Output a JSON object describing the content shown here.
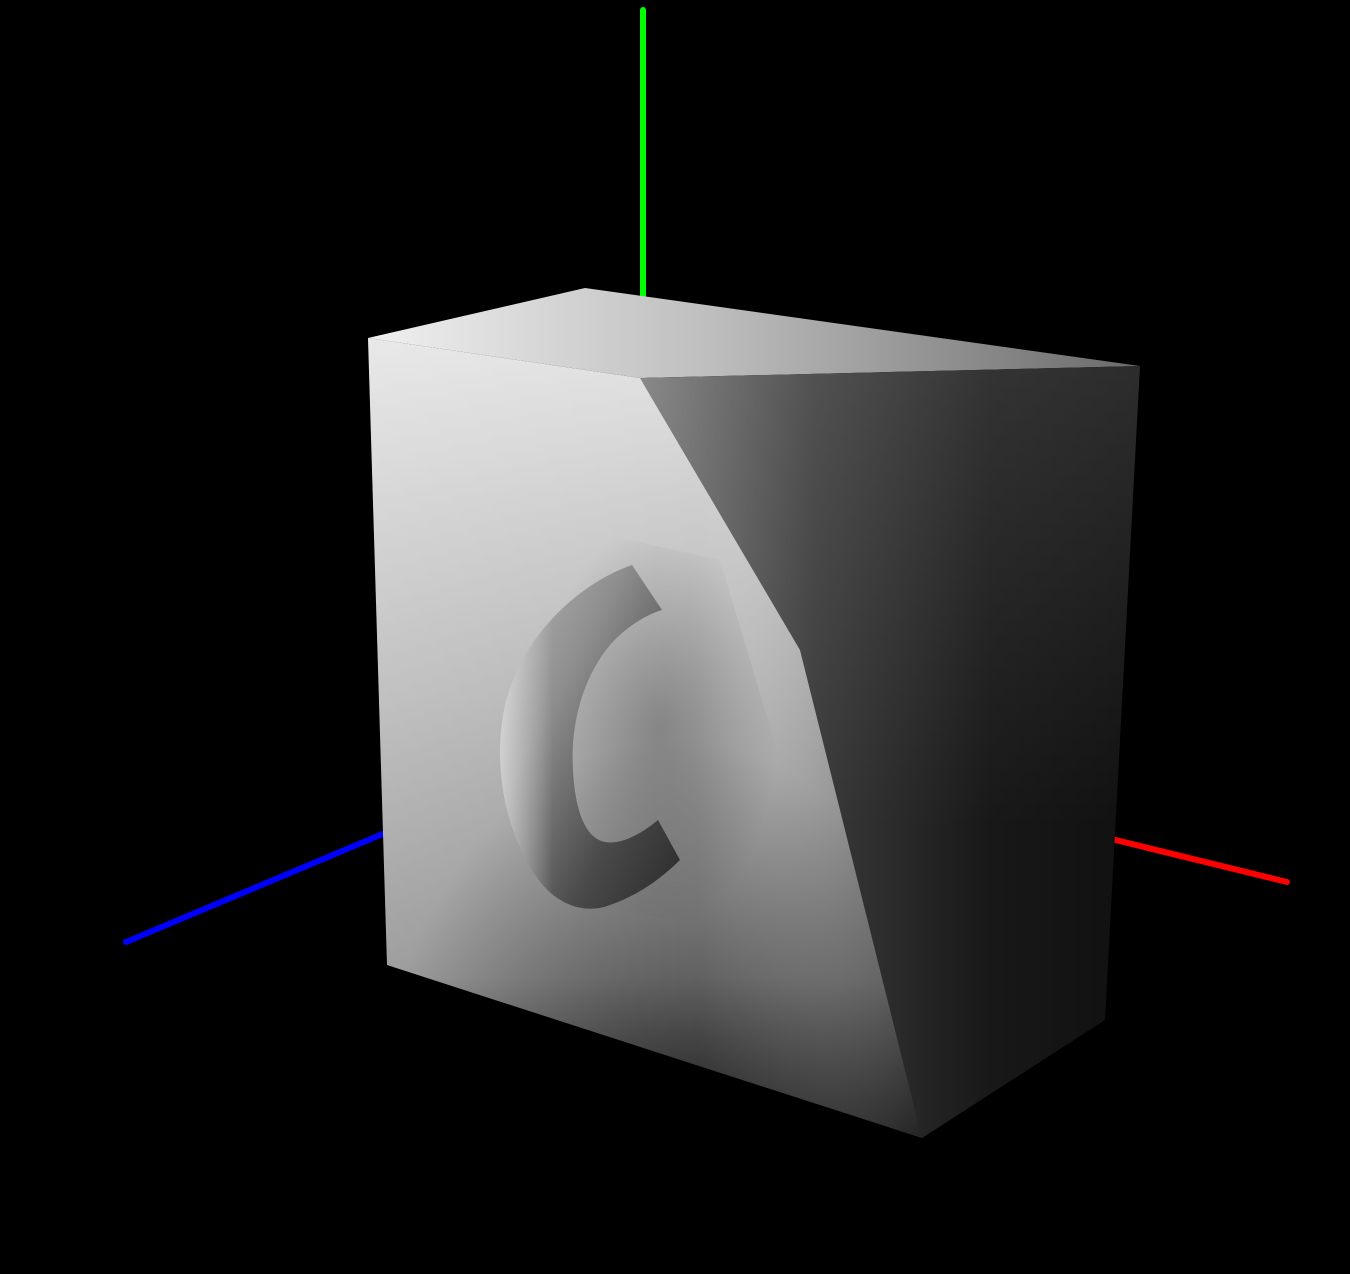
{
  "scene": {
    "background_color": "#000000",
    "objects": [
      {
        "id": "cube",
        "kind": "box",
        "shading": "grayscale-smooth"
      },
      {
        "id": "torus",
        "kind": "partial-torus",
        "shading": "grayscale-smooth"
      }
    ],
    "axes": {
      "x": {
        "color": "#ff0000"
      },
      "y": {
        "color": "#00ff00"
      },
      "z": {
        "color": "#0000ff"
      }
    }
  }
}
